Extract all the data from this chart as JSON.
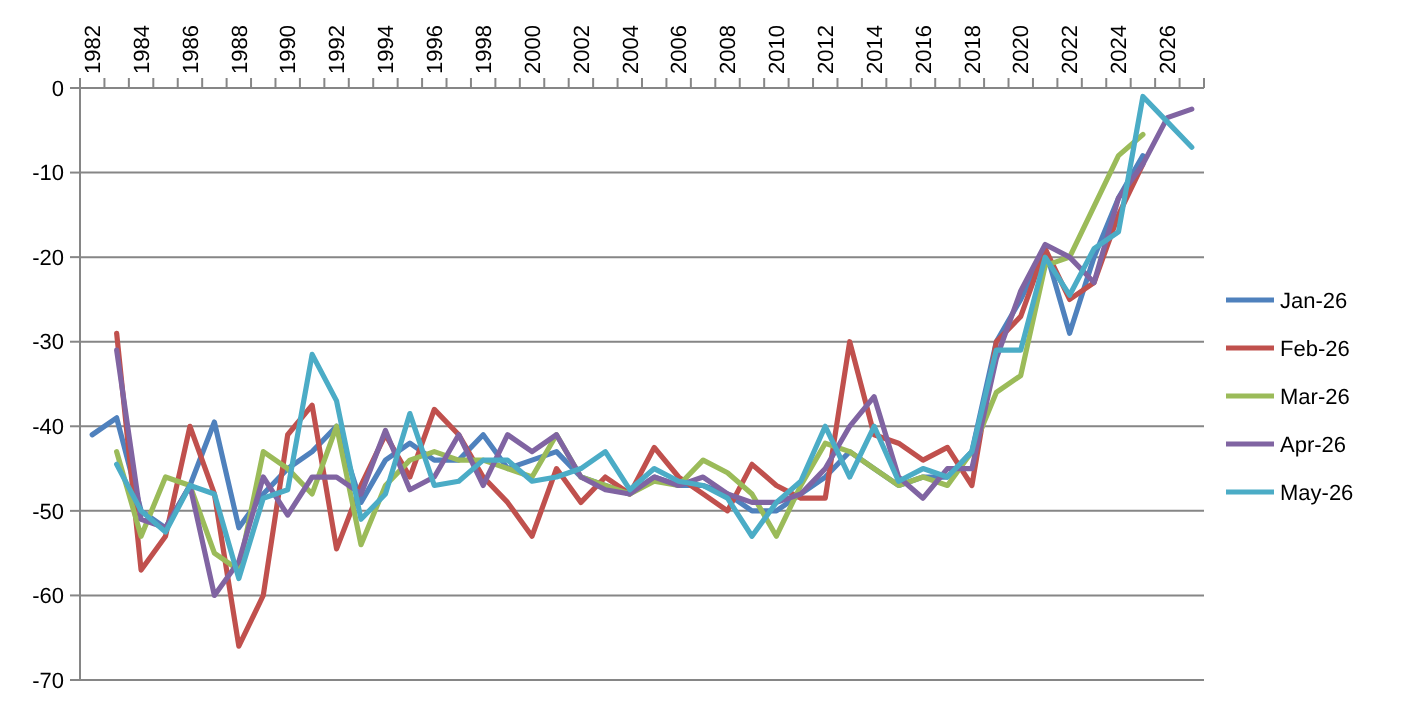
{
  "chart_data": {
    "type": "line",
    "categories": [
      "1982",
      null,
      "1984",
      null,
      "1986",
      null,
      "1988",
      null,
      "1990",
      null,
      "1992",
      null,
      "1994",
      null,
      "1996",
      null,
      "1998",
      null,
      "2000",
      null,
      "2002",
      null,
      "2004",
      null,
      "2006",
      null,
      "2008",
      null,
      "2010",
      null,
      "2012",
      null,
      "2014",
      null,
      "2016",
      null,
      "2018",
      null,
      "2020",
      null,
      "2022",
      null,
      "2024",
      null,
      "2026",
      null
    ],
    "series": [
      {
        "name": "Jan-26",
        "color": "#4f81bd",
        "values": [
          -41,
          -39,
          -50,
          -52,
          -47,
          -39.5,
          -52,
          -48,
          -45,
          -43,
          -40,
          -49,
          -44,
          -42,
          -44,
          -44,
          -41,
          -45,
          -44,
          -43,
          -46,
          -47,
          -48,
          -46,
          -47,
          -47,
          -48,
          -50,
          -50,
          -48,
          -46,
          -43,
          -45,
          -47,
          -46,
          -46,
          -43,
          -30,
          -25,
          -19,
          -29,
          -20,
          -13,
          -8,
          null,
          null
        ]
      },
      {
        "name": "Feb-26",
        "color": "#c0504d",
        "values": [
          null,
          -29,
          -57,
          -53,
          -40,
          -48,
          -66,
          -60,
          -41,
          -37.5,
          -54.5,
          -47,
          -41,
          -46,
          -38,
          -41,
          -46,
          -49,
          -53,
          -45,
          -49,
          -46,
          -48,
          -42.5,
          -46,
          -48,
          -50,
          -44.5,
          -47,
          -48.5,
          -48.5,
          -30,
          -41,
          -42,
          -44,
          -42.5,
          -47,
          -30,
          -27,
          -19,
          -25,
          -23,
          -15,
          -9,
          null,
          null
        ]
      },
      {
        "name": "Mar-26",
        "color": "#9bbb59",
        "values": [
          null,
          -43,
          -53,
          -46,
          -47,
          -55,
          -57,
          -43,
          -45,
          -48,
          -40,
          -54,
          -47,
          -44,
          -43,
          -44,
          -44,
          -45,
          -46,
          -41,
          -46,
          -47,
          -48,
          -46.5,
          -47,
          -44,
          -45.5,
          -48,
          -53,
          -47,
          -42,
          -43,
          -45,
          -47,
          -46,
          -47,
          -43,
          -36,
          -34,
          -21,
          -20,
          -14,
          -8,
          -5.5,
          null,
          null
        ]
      },
      {
        "name": "Apr-26",
        "color": "#8064a2",
        "values": [
          null,
          -31,
          -51,
          -52,
          -47,
          -60,
          -56,
          -46,
          -50.5,
          -46,
          -46,
          -48,
          -40.5,
          -47.5,
          -46,
          -41,
          -47,
          -41,
          -43,
          -41,
          -46,
          -47.5,
          -48,
          -46,
          -47,
          -46,
          -48,
          -49,
          -49,
          -48,
          -45,
          -40,
          -36.5,
          -46,
          -48.5,
          -45,
          -45,
          -32,
          -24,
          -18.5,
          -20,
          -23,
          -13,
          -9,
          -3.5,
          -2.5
        ]
      },
      {
        "name": "May-26",
        "color": "#4bacc6",
        "values": [
          null,
          -44.5,
          -50,
          -52.5,
          -47,
          -48,
          -58,
          -48.5,
          -47.5,
          -31.5,
          -37,
          -51,
          -48,
          -38.5,
          -47,
          -46.5,
          -44,
          -44,
          -46.5,
          -46,
          -45,
          -43,
          -47.5,
          -45,
          -46.5,
          -47,
          -48.5,
          -53,
          -49,
          -46.5,
          -40,
          -46,
          -40,
          -46.5,
          -45,
          -46,
          -43,
          -31,
          -31,
          -20,
          -24.5,
          -19,
          -17,
          -1,
          -4,
          -7
        ]
      }
    ],
    "ylim": [
      -70,
      0
    ],
    "yticks": [
      -70,
      -60,
      -50,
      -40,
      -30,
      -20,
      -10,
      0
    ],
    "grid": "y",
    "legend": "right",
    "line_style": "solid",
    "marker": "none"
  }
}
